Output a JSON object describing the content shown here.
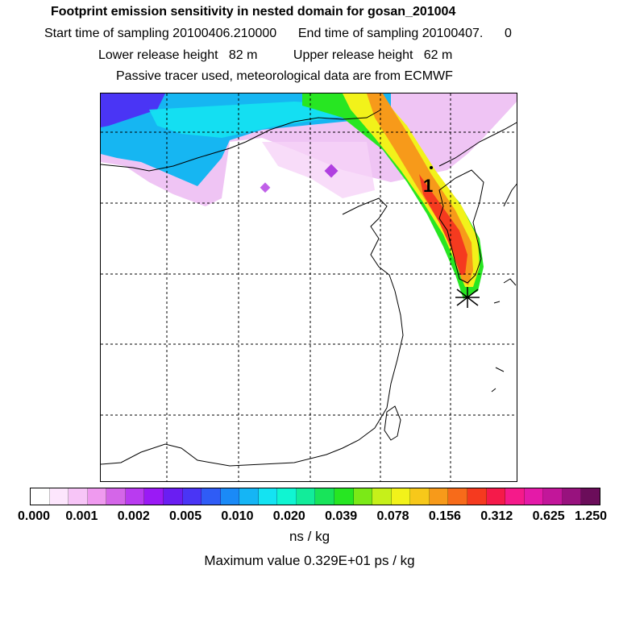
{
  "title": {
    "line1": "Footprint emission sensitivity in nested domain for gosan_201004",
    "line2": "Start time of sampling 20100406.210000      End time of sampling 20100407.      0",
    "line3": "Lower release height   82 m          Upper release height   62 m",
    "line4": "Passive tracer used, meteorological data are from ECMWF"
  },
  "map": {
    "marker_label": "1",
    "receptor": "gosan"
  },
  "colorbar": {
    "colors": [
      "#ffffff",
      "#fde6fd",
      "#f7c5f7",
      "#ef9aef",
      "#d466e8",
      "#b93bf0",
      "#9a1af5",
      "#6a1ef2",
      "#4a35f5",
      "#2f5cf6",
      "#1a8af7",
      "#15b5f5",
      "#14e3f2",
      "#10f5d2",
      "#12ec9a",
      "#18e45a",
      "#27e622",
      "#7be917",
      "#c6f01a",
      "#f2f21a",
      "#f7c81a",
      "#f79a1a",
      "#f76b1a",
      "#f53a1f",
      "#f51a4a",
      "#f51a8a",
      "#e41aa8",
      "#c2169a",
      "#98127e",
      "#6b0d5a"
    ],
    "ticks": [
      "0.000",
      "0.001",
      "0.002",
      "0.005",
      "0.010",
      "0.020",
      "0.039",
      "0.078",
      "0.156",
      "0.312",
      "0.625",
      "1.250"
    ],
    "units": "ns / kg",
    "max_value": "Maximum value  0.329E+01 ps / kg"
  }
}
